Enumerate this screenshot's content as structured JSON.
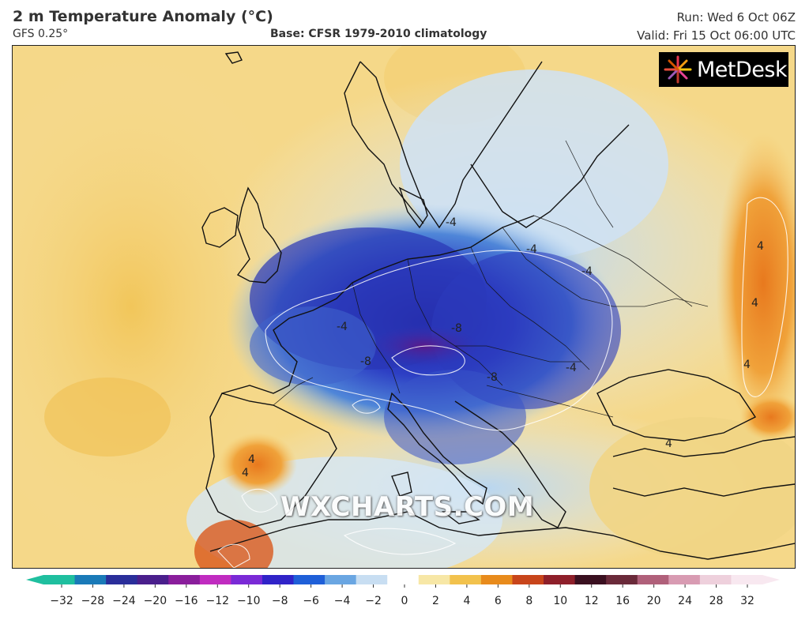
{
  "header": {
    "title": "2 m Temperature Anomaly (°C)",
    "model": "GFS 0.25°",
    "base": "Base: CFSR 1979-2010 climatology",
    "run": "Run: Wed 6 Oct 06Z",
    "valid": "Valid: Fri 15 Oct 06:00 UTC"
  },
  "logo": {
    "text": "MetDesk"
  },
  "watermark": "WXCHARTS.COM",
  "map": {
    "region": "Europe",
    "contour_labels": [
      "-4",
      "-4",
      "-4",
      "-4",
      "-4",
      "-8",
      "-8",
      "-8",
      "4",
      "4",
      "4",
      "4",
      "4",
      "4"
    ]
  },
  "colorbar": {
    "ticks": [
      "−32",
      "−28",
      "−24",
      "−20",
      "−16",
      "−12",
      "−10",
      "−8",
      "−6",
      "−4",
      "−2",
      "0",
      "2",
      "4",
      "6",
      "8",
      "10",
      "12",
      "16",
      "20",
      "24",
      "28",
      "32"
    ],
    "colors": [
      "#1fbf9f",
      "#1a7ab8",
      "#2a2e9a",
      "#4a1f8c",
      "#8a1e9c",
      "#c02cc0",
      "#7a2ad6",
      "#3023c8",
      "#1f5fd8",
      "#6aa6e2",
      "#c8def2",
      "#ffffff",
      "#f7e7a6",
      "#f2c24d",
      "#e88b1c",
      "#c8451b",
      "#8e1f2a",
      "#3a1020",
      "#6a2a3a",
      "#b0607a",
      "#d89bb2",
      "#eed0dc",
      "#f8e8f0"
    ]
  }
}
